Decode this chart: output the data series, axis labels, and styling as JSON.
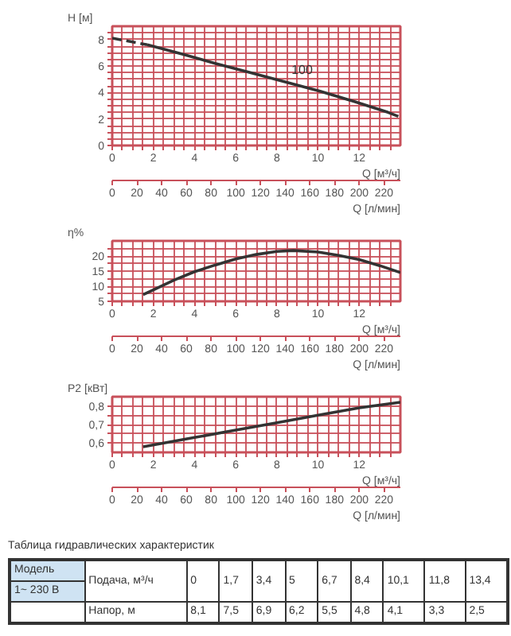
{
  "chart_data": [
    {
      "type": "line",
      "ylabel": "H [м]",
      "xlabel": "Q [м³/ч]",
      "x2label": "Q [л/мин]",
      "xlim": [
        0,
        14
      ],
      "ylim": [
        0,
        9
      ],
      "x2lim": [
        0,
        233.3
      ],
      "xticks": [
        0,
        {
          "value": 0.5,
          "label": null
        },
        2,
        {
          "value": 1,
          "label": null
        },
        {
          "value": 1.5,
          "label": null
        },
        {
          "value": 2.5,
          "label": null
        },
        {
          "value": 3,
          "label": null
        },
        {
          "value": 3.5,
          "label": null
        },
        4,
        {
          "value": 4.5,
          "label": null
        },
        {
          "value": 5,
          "label": null
        },
        {
          "value": 5.5,
          "label": null
        },
        6,
        {
          "value": 6.5,
          "label": null
        },
        {
          "value": 7,
          "label": null
        },
        {
          "value": 7.5,
          "label": null
        },
        8,
        {
          "value": 8.5,
          "label": null
        },
        {
          "value": 9,
          "label": null
        },
        {
          "value": 9.5,
          "label": null
        },
        10,
        {
          "value": 10.5,
          "label": null
        },
        {
          "value": 11,
          "label": null
        },
        {
          "value": 11.5,
          "label": null
        },
        12,
        {
          "value": 12.5,
          "label": null
        },
        {
          "value": 13,
          "label": null
        },
        {
          "value": 13.5,
          "label": null
        }
      ],
      "yticks": [
        0,
        {
          "value": 0.5,
          "label": null
        },
        {
          "value": 1,
          "label": null
        },
        {
          "value": 1.5,
          "label": null
        },
        2,
        {
          "value": 2.5,
          "label": null
        },
        {
          "value": 3,
          "label": null
        },
        {
          "value": 3.5,
          "label": null
        },
        4,
        {
          "value": 4.5,
          "label": null
        },
        {
          "value": 5,
          "label": null
        },
        {
          "value": 5.5,
          "label": null
        },
        6,
        {
          "value": 6.5,
          "label": null
        },
        {
          "value": 7,
          "label": null
        },
        {
          "value": 7.5,
          "label": null
        },
        8,
        {
          "value": 8.5,
          "label": null
        }
      ],
      "x2ticks": [
        0,
        20,
        40,
        60,
        80,
        100,
        120,
        140,
        160,
        180,
        200,
        220
      ],
      "grid": true,
      "legend": false,
      "marker": "none",
      "series": [
        {
          "color": "#333333",
          "line_style": "dashed",
          "x": [
            0,
            1.7
          ],
          "values": [
            8.1,
            7.6
          ]
        },
        {
          "name": "100",
          "color": "#333333",
          "line_style": "solid",
          "x": [
            1.7,
            3.4,
            5,
            6.7,
            8.4,
            10.1,
            11.8,
            13.4,
            13.9
          ],
          "values": [
            7.6,
            6.9,
            6.2,
            5.5,
            4.8,
            4.1,
            3.3,
            2.5,
            2.2
          ]
        }
      ]
    },
    {
      "type": "line",
      "ylabel": "η%",
      "xlabel": "Q [м³/ч]",
      "x2label": "Q [л/мин]",
      "xlim": [
        0,
        14
      ],
      "ylim": [
        5,
        25
      ],
      "x2lim": [
        0,
        233.3
      ],
      "xticks": [
        0,
        {
          "value": 0.5,
          "label": null
        },
        {
          "value": 1,
          "label": null
        },
        {
          "value": 1.5,
          "label": null
        },
        2,
        {
          "value": 2.5,
          "label": null
        },
        {
          "value": 3,
          "label": null
        },
        {
          "value": 3.5,
          "label": null
        },
        4,
        {
          "value": 4.5,
          "label": null
        },
        {
          "value": 5,
          "label": null
        },
        {
          "value": 5.5,
          "label": null
        },
        6,
        {
          "value": 6.5,
          "label": null
        },
        {
          "value": 7,
          "label": null
        },
        {
          "value": 7.5,
          "label": null
        },
        8,
        {
          "value": 8.5,
          "label": null
        },
        {
          "value": 9,
          "label": null
        },
        {
          "value": 9.5,
          "label": null
        },
        10,
        {
          "value": 10.5,
          "label": null
        },
        {
          "value": 11,
          "label": null
        },
        {
          "value": 11.5,
          "label": null
        },
        12,
        {
          "value": 12.5,
          "label": null
        },
        {
          "value": 13,
          "label": null
        },
        {
          "value": 13.5,
          "label": null
        }
      ],
      "yticks": [
        5,
        {
          "value": 7.5,
          "label": null
        },
        10,
        {
          "value": 12.5,
          "label": null
        },
        15,
        {
          "value": 17.5,
          "label": null
        },
        20,
        {
          "value": 22.5,
          "label": null
        }
      ],
      "x2ticks": [
        0,
        20,
        40,
        60,
        80,
        100,
        120,
        140,
        160,
        180,
        200,
        220
      ],
      "grid": true,
      "legend": false,
      "marker": "none",
      "series": [
        {
          "color": "#333333",
          "line_style": "solid",
          "x": [
            1.5,
            2,
            3,
            4,
            5,
            6,
            7,
            8,
            8.8,
            10,
            11,
            12,
            13,
            14
          ],
          "values": [
            7.2,
            8.8,
            12,
            14.8,
            17,
            19,
            20.5,
            21.5,
            21.8,
            21.3,
            20.2,
            18.8,
            16.8,
            14.5
          ]
        }
      ]
    },
    {
      "type": "line",
      "ylabel": "P2 [кВт]",
      "xlabel": "Q [м³/ч]",
      "x2label": "Q [л/мин]",
      "xlim": [
        0,
        14
      ],
      "ylim": [
        0.55,
        0.85
      ],
      "x2lim": [
        0,
        233.3
      ],
      "xticks": [
        0,
        {
          "value": 0.5,
          "label": null
        },
        {
          "value": 1,
          "label": null
        },
        {
          "value": 1.5,
          "label": null
        },
        2,
        {
          "value": 2.5,
          "label": null
        },
        {
          "value": 3,
          "label": null
        },
        {
          "value": 3.5,
          "label": null
        },
        4,
        {
          "value": 4.5,
          "label": null
        },
        {
          "value": 5,
          "label": null
        },
        {
          "value": 5.5,
          "label": null
        },
        6,
        {
          "value": 6.5,
          "label": null
        },
        {
          "value": 7,
          "label": null
        },
        {
          "value": 7.5,
          "label": null
        },
        8,
        {
          "value": 8.5,
          "label": null
        },
        {
          "value": 9,
          "label": null
        },
        {
          "value": 9.5,
          "label": null
        },
        10,
        {
          "value": 10.5,
          "label": null
        },
        {
          "value": 11,
          "label": null
        },
        {
          "value": 11.5,
          "label": null
        },
        12,
        {
          "value": 12.5,
          "label": null
        },
        {
          "value": 13,
          "label": null
        },
        {
          "value": 13.5,
          "label": null
        }
      ],
      "yticks": [
        {
          "value": 0.6,
          "label": "0,6"
        },
        {
          "value": 0.65,
          "label": null
        },
        {
          "value": 0.7,
          "label": "0,7"
        },
        {
          "value": 0.75,
          "label": null
        },
        {
          "value": 0.8,
          "label": "0,8"
        }
      ],
      "x2ticks": [
        0,
        20,
        40,
        60,
        80,
        100,
        120,
        140,
        160,
        180,
        200,
        220
      ],
      "grid": true,
      "legend": false,
      "marker": "none",
      "series": [
        {
          "color": "#333333",
          "line_style": "solid",
          "x": [
            1.5,
            4,
            6,
            8,
            10,
            12,
            14
          ],
          "values": [
            0.58,
            0.63,
            0.67,
            0.71,
            0.75,
            0.79,
            0.82
          ]
        }
      ]
    },
    {
      "type": "other",
      "title": "Таблица гидравлических характеристик",
      "annotations": [
        "Модель",
        "1~ 230 В",
        "Подача, м³/ч",
        "0",
        "1,7",
        "3,4",
        "5",
        "6,7",
        "8,4",
        "10,1",
        "11,8",
        "13,4",
        "Напор, м",
        "8,1",
        "7,5",
        "6,9",
        "6,2",
        "5,5",
        "4,8",
        "4,1",
        "3,3",
        "2,5"
      ]
    }
  ]
}
